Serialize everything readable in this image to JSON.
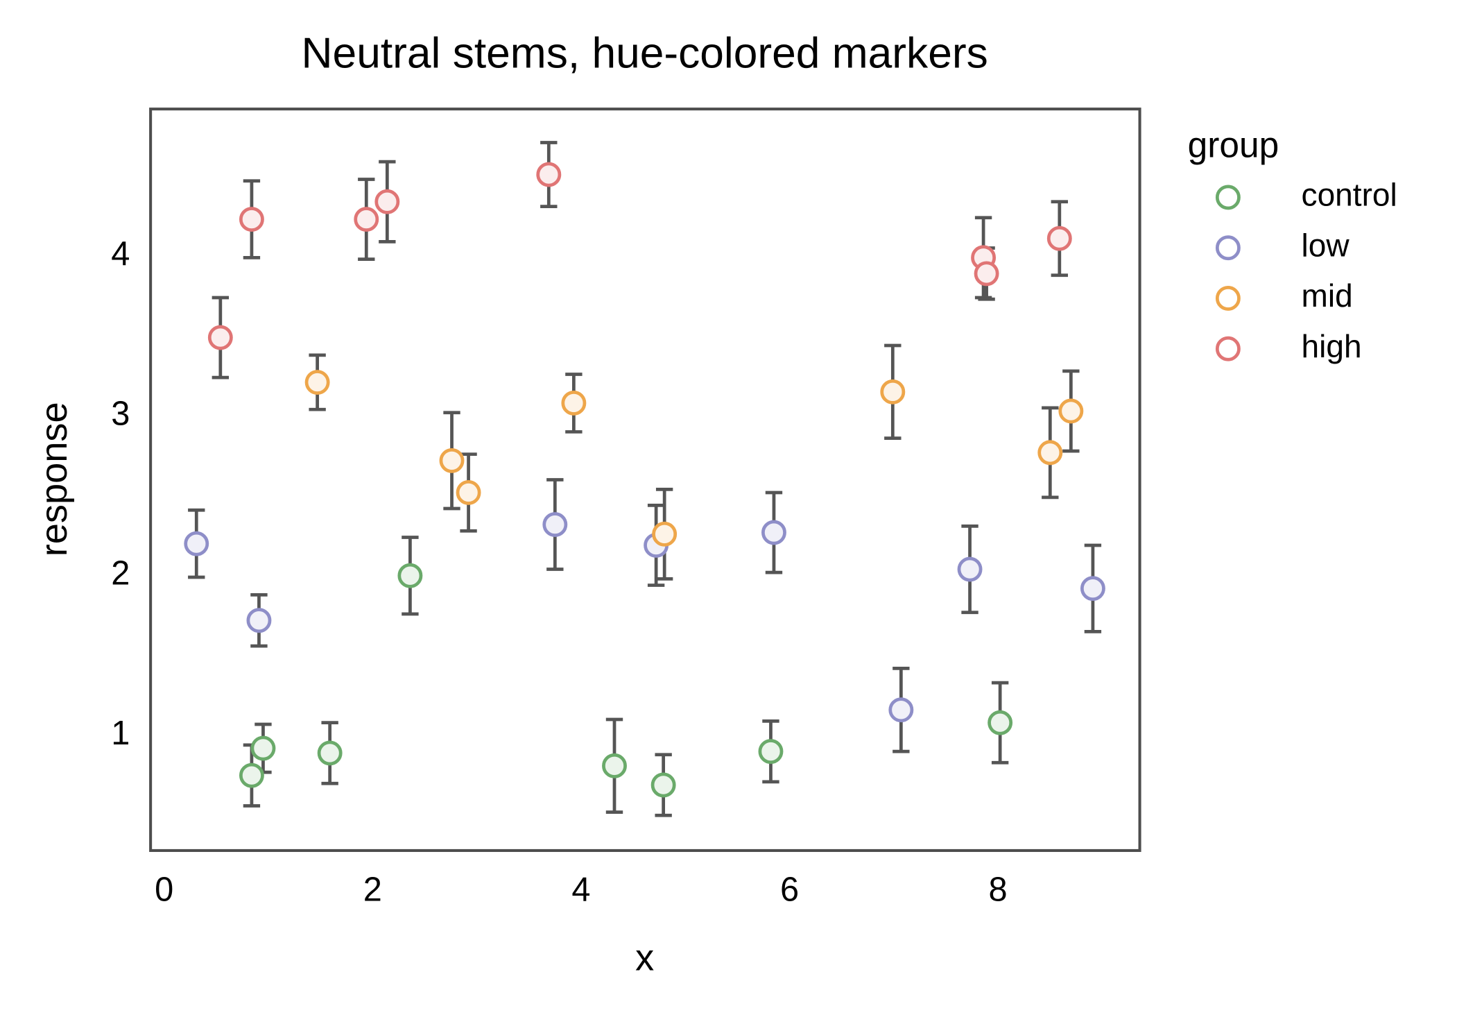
{
  "chart_data": {
    "type": "scatter",
    "title": "Neutral stems, hue-colored markers",
    "x_label": "x",
    "y_label": "response",
    "legend_title": "group",
    "legend": "outside-upper-right",
    "xlim": [
      -0.13,
      9.36
    ],
    "ylim": [
      0.28,
      4.92
    ],
    "xticks": [
      0,
      2,
      4,
      6,
      8
    ],
    "yticks": [
      1,
      2,
      3,
      4
    ],
    "stem_color": "#555555",
    "series": [
      {
        "name": "control",
        "color": "#6aaa6a",
        "x": [
          0.84,
          0.95,
          1.59,
          2.36,
          4.32,
          4.79,
          5.82,
          8.02
        ],
        "values": [
          0.75,
          0.92,
          0.89,
          2.0,
          0.81,
          0.69,
          0.9,
          1.08
        ],
        "errors": [
          0.19,
          0.15,
          0.19,
          0.24,
          0.29,
          0.19,
          0.19,
          0.25
        ]
      },
      {
        "name": "low",
        "color": "#8e8ec8",
        "x": [
          0.31,
          0.91,
          3.75,
          4.72,
          5.85,
          7.07,
          7.73,
          8.91
        ],
        "values": [
          2.2,
          1.72,
          2.32,
          2.19,
          2.27,
          1.16,
          2.04,
          1.92
        ],
        "errors": [
          0.21,
          0.16,
          0.28,
          0.25,
          0.25,
          0.26,
          0.27,
          0.27
        ]
      },
      {
        "name": "mid",
        "color": "#eea64a",
        "x": [
          1.47,
          2.76,
          2.92,
          3.93,
          4.8,
          6.99,
          8.5,
          8.7
        ],
        "values": [
          3.21,
          2.72,
          2.52,
          3.08,
          2.26,
          3.15,
          2.77,
          3.03
        ],
        "errors": [
          0.17,
          0.3,
          0.24,
          0.18,
          0.28,
          0.29,
          0.28,
          0.25
        ]
      },
      {
        "name": "high",
        "color": "#e07575",
        "x": [
          0.54,
          0.84,
          1.94,
          2.14,
          3.69,
          7.86,
          7.89,
          8.59
        ],
        "values": [
          3.49,
          4.23,
          4.23,
          4.34,
          4.51,
          3.99,
          3.89,
          4.11
        ],
        "errors": [
          0.25,
          0.24,
          0.25,
          0.25,
          0.2,
          0.25,
          0.16,
          0.23
        ]
      }
    ]
  }
}
